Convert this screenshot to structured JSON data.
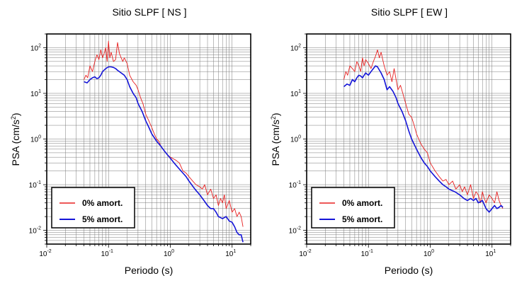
{
  "chart_data": [
    {
      "type": "line",
      "title": "Sitio SLPF [ NS ]",
      "xlabel": "Periodo (s)",
      "ylabel": "PSA (cm/s2)",
      "xscale": "log",
      "yscale": "log",
      "xlim": [
        0.01,
        20
      ],
      "ylim": [
        0.005,
        200
      ],
      "xtick_labels": [
        "10-2",
        "10-1",
        "100",
        "101"
      ],
      "ytick_labels": [
        "10-2",
        "10-1",
        "100",
        "101",
        "102"
      ],
      "grid": true,
      "legend_position": "bottom-left",
      "series": [
        {
          "name": "0% amort.",
          "color": "#e82020",
          "x": [
            0.04,
            0.043,
            0.046,
            0.05,
            0.055,
            0.06,
            0.065,
            0.07,
            0.075,
            0.08,
            0.085,
            0.09,
            0.095,
            0.1,
            0.105,
            0.11,
            0.12,
            0.13,
            0.14,
            0.15,
            0.16,
            0.17,
            0.18,
            0.2,
            0.22,
            0.25,
            0.28,
            0.3,
            0.33,
            0.36,
            0.4,
            0.45,
            0.5,
            0.55,
            0.6,
            0.65,
            0.7,
            0.8,
            0.9,
            1.0,
            1.2,
            1.4,
            1.6,
            1.8,
            2.0,
            2.3,
            2.6,
            3.0,
            3.3,
            3.6,
            4.0,
            4.5,
            5.0,
            5.5,
            6.0,
            6.5,
            7.0,
            7.5,
            8.0,
            9.0,
            10.0,
            11.0,
            12.0,
            13.0,
            14.0,
            15.0
          ],
          "y": [
            20,
            25,
            22,
            40,
            30,
            50,
            70,
            55,
            90,
            60,
            75,
            100,
            50,
            140,
            60,
            80,
            50,
            55,
            130,
            75,
            60,
            50,
            60,
            45,
            25,
            18,
            15,
            12,
            8,
            6,
            3.5,
            2.5,
            1.8,
            1.3,
            1.0,
            0.9,
            0.7,
            0.55,
            0.45,
            0.4,
            0.35,
            0.3,
            0.2,
            0.18,
            0.15,
            0.12,
            0.1,
            0.09,
            0.08,
            0.1,
            0.06,
            0.08,
            0.05,
            0.06,
            0.035,
            0.05,
            0.04,
            0.06,
            0.03,
            0.045,
            0.025,
            0.03,
            0.02,
            0.025,
            0.02,
            0.012
          ]
        },
        {
          "name": "5% amort.",
          "color": "#1414d8",
          "x": [
            0.04,
            0.045,
            0.05,
            0.055,
            0.06,
            0.065,
            0.07,
            0.075,
            0.08,
            0.09,
            0.1,
            0.11,
            0.12,
            0.13,
            0.14,
            0.16,
            0.18,
            0.2,
            0.22,
            0.25,
            0.28,
            0.3,
            0.35,
            0.4,
            0.45,
            0.5,
            0.6,
            0.7,
            0.8,
            0.9,
            1.0,
            1.2,
            1.4,
            1.6,
            1.8,
            2.0,
            2.5,
            3.0,
            3.5,
            4.0,
            4.5,
            5.0,
            5.5,
            6.0,
            7.0,
            8.0,
            9.0,
            10.0,
            11.0,
            12.0,
            13.0,
            14.0,
            15.0
          ],
          "y": [
            18,
            17,
            20,
            22,
            23,
            21,
            22,
            25,
            30,
            35,
            38,
            38,
            37,
            35,
            32,
            28,
            25,
            20,
            14,
            10,
            8,
            6,
            4,
            2.5,
            1.8,
            1.3,
            0.9,
            0.7,
            0.55,
            0.45,
            0.38,
            0.28,
            0.22,
            0.18,
            0.15,
            0.12,
            0.08,
            0.06,
            0.045,
            0.035,
            0.03,
            0.03,
            0.025,
            0.02,
            0.018,
            0.02,
            0.016,
            0.015,
            0.012,
            0.009,
            0.008,
            0.008,
            0.0055
          ]
        }
      ]
    },
    {
      "type": "line",
      "title": "Sitio SLPF [ EW ]",
      "xlabel": "Periodo (s)",
      "ylabel": "PSA (cm/s2)",
      "xscale": "log",
      "yscale": "log",
      "xlim": [
        0.01,
        20
      ],
      "ylim": [
        0.005,
        200
      ],
      "xtick_labels": [
        "10-2",
        "10-1",
        "100",
        "101"
      ],
      "ytick_labels": [
        "10-2",
        "10-1",
        "100",
        "101",
        "102"
      ],
      "grid": true,
      "legend_position": "bottom-left",
      "series": [
        {
          "name": "0% amort.",
          "color": "#e82020",
          "x": [
            0.04,
            0.043,
            0.046,
            0.05,
            0.055,
            0.06,
            0.065,
            0.07,
            0.075,
            0.08,
            0.085,
            0.09,
            0.1,
            0.11,
            0.12,
            0.13,
            0.14,
            0.15,
            0.16,
            0.17,
            0.18,
            0.2,
            0.22,
            0.24,
            0.26,
            0.28,
            0.3,
            0.33,
            0.36,
            0.4,
            0.45,
            0.5,
            0.55,
            0.6,
            0.65,
            0.7,
            0.8,
            0.9,
            1.0,
            1.2,
            1.4,
            1.6,
            1.8,
            2.0,
            2.3,
            2.6,
            3.0,
            3.3,
            3.6,
            4.0,
            4.5,
            5.0,
            5.5,
            6.0,
            6.5,
            7.0,
            7.5,
            8.0,
            9.0,
            10.0,
            11.0,
            12.0,
            13.0,
            14.0,
            15.0
          ],
          "y": [
            20,
            30,
            25,
            40,
            35,
            30,
            50,
            40,
            30,
            60,
            40,
            55,
            45,
            35,
            50,
            65,
            90,
            60,
            80,
            55,
            40,
            25,
            30,
            18,
            35,
            20,
            12,
            15,
            10,
            6,
            3.5,
            3.0,
            2.0,
            1.3,
            1.0,
            0.8,
            0.6,
            0.5,
            0.3,
            0.2,
            0.15,
            0.12,
            0.13,
            0.1,
            0.12,
            0.08,
            0.1,
            0.07,
            0.09,
            0.06,
            0.1,
            0.05,
            0.07,
            0.06,
            0.04,
            0.07,
            0.05,
            0.04,
            0.06,
            0.05,
            0.04,
            0.07,
            0.045,
            0.035,
            0.03
          ]
        },
        {
          "name": "5% amort.",
          "color": "#1414d8",
          "x": [
            0.04,
            0.045,
            0.05,
            0.055,
            0.06,
            0.065,
            0.07,
            0.075,
            0.08,
            0.09,
            0.1,
            0.11,
            0.12,
            0.13,
            0.14,
            0.16,
            0.18,
            0.2,
            0.22,
            0.25,
            0.28,
            0.3,
            0.35,
            0.4,
            0.45,
            0.5,
            0.6,
            0.7,
            0.8,
            0.9,
            1.0,
            1.2,
            1.4,
            1.6,
            1.8,
            2.0,
            2.5,
            3.0,
            3.5,
            4.0,
            4.5,
            5.0,
            5.5,
            6.0,
            7.0,
            8.0,
            9.0,
            10.0,
            11.0,
            12.0,
            13.0,
            14.0,
            15.0
          ],
          "y": [
            14,
            16,
            15,
            20,
            18,
            22,
            25,
            24,
            22,
            28,
            25,
            30,
            35,
            40,
            38,
            28,
            20,
            12,
            14,
            11,
            8,
            6,
            4,
            2.5,
            1.5,
            1.0,
            0.6,
            0.4,
            0.3,
            0.25,
            0.2,
            0.15,
            0.12,
            0.1,
            0.09,
            0.08,
            0.07,
            0.06,
            0.05,
            0.045,
            0.05,
            0.045,
            0.05,
            0.04,
            0.045,
            0.03,
            0.025,
            0.03,
            0.035,
            0.03,
            0.032,
            0.035,
            0.032
          ]
        }
      ]
    }
  ]
}
